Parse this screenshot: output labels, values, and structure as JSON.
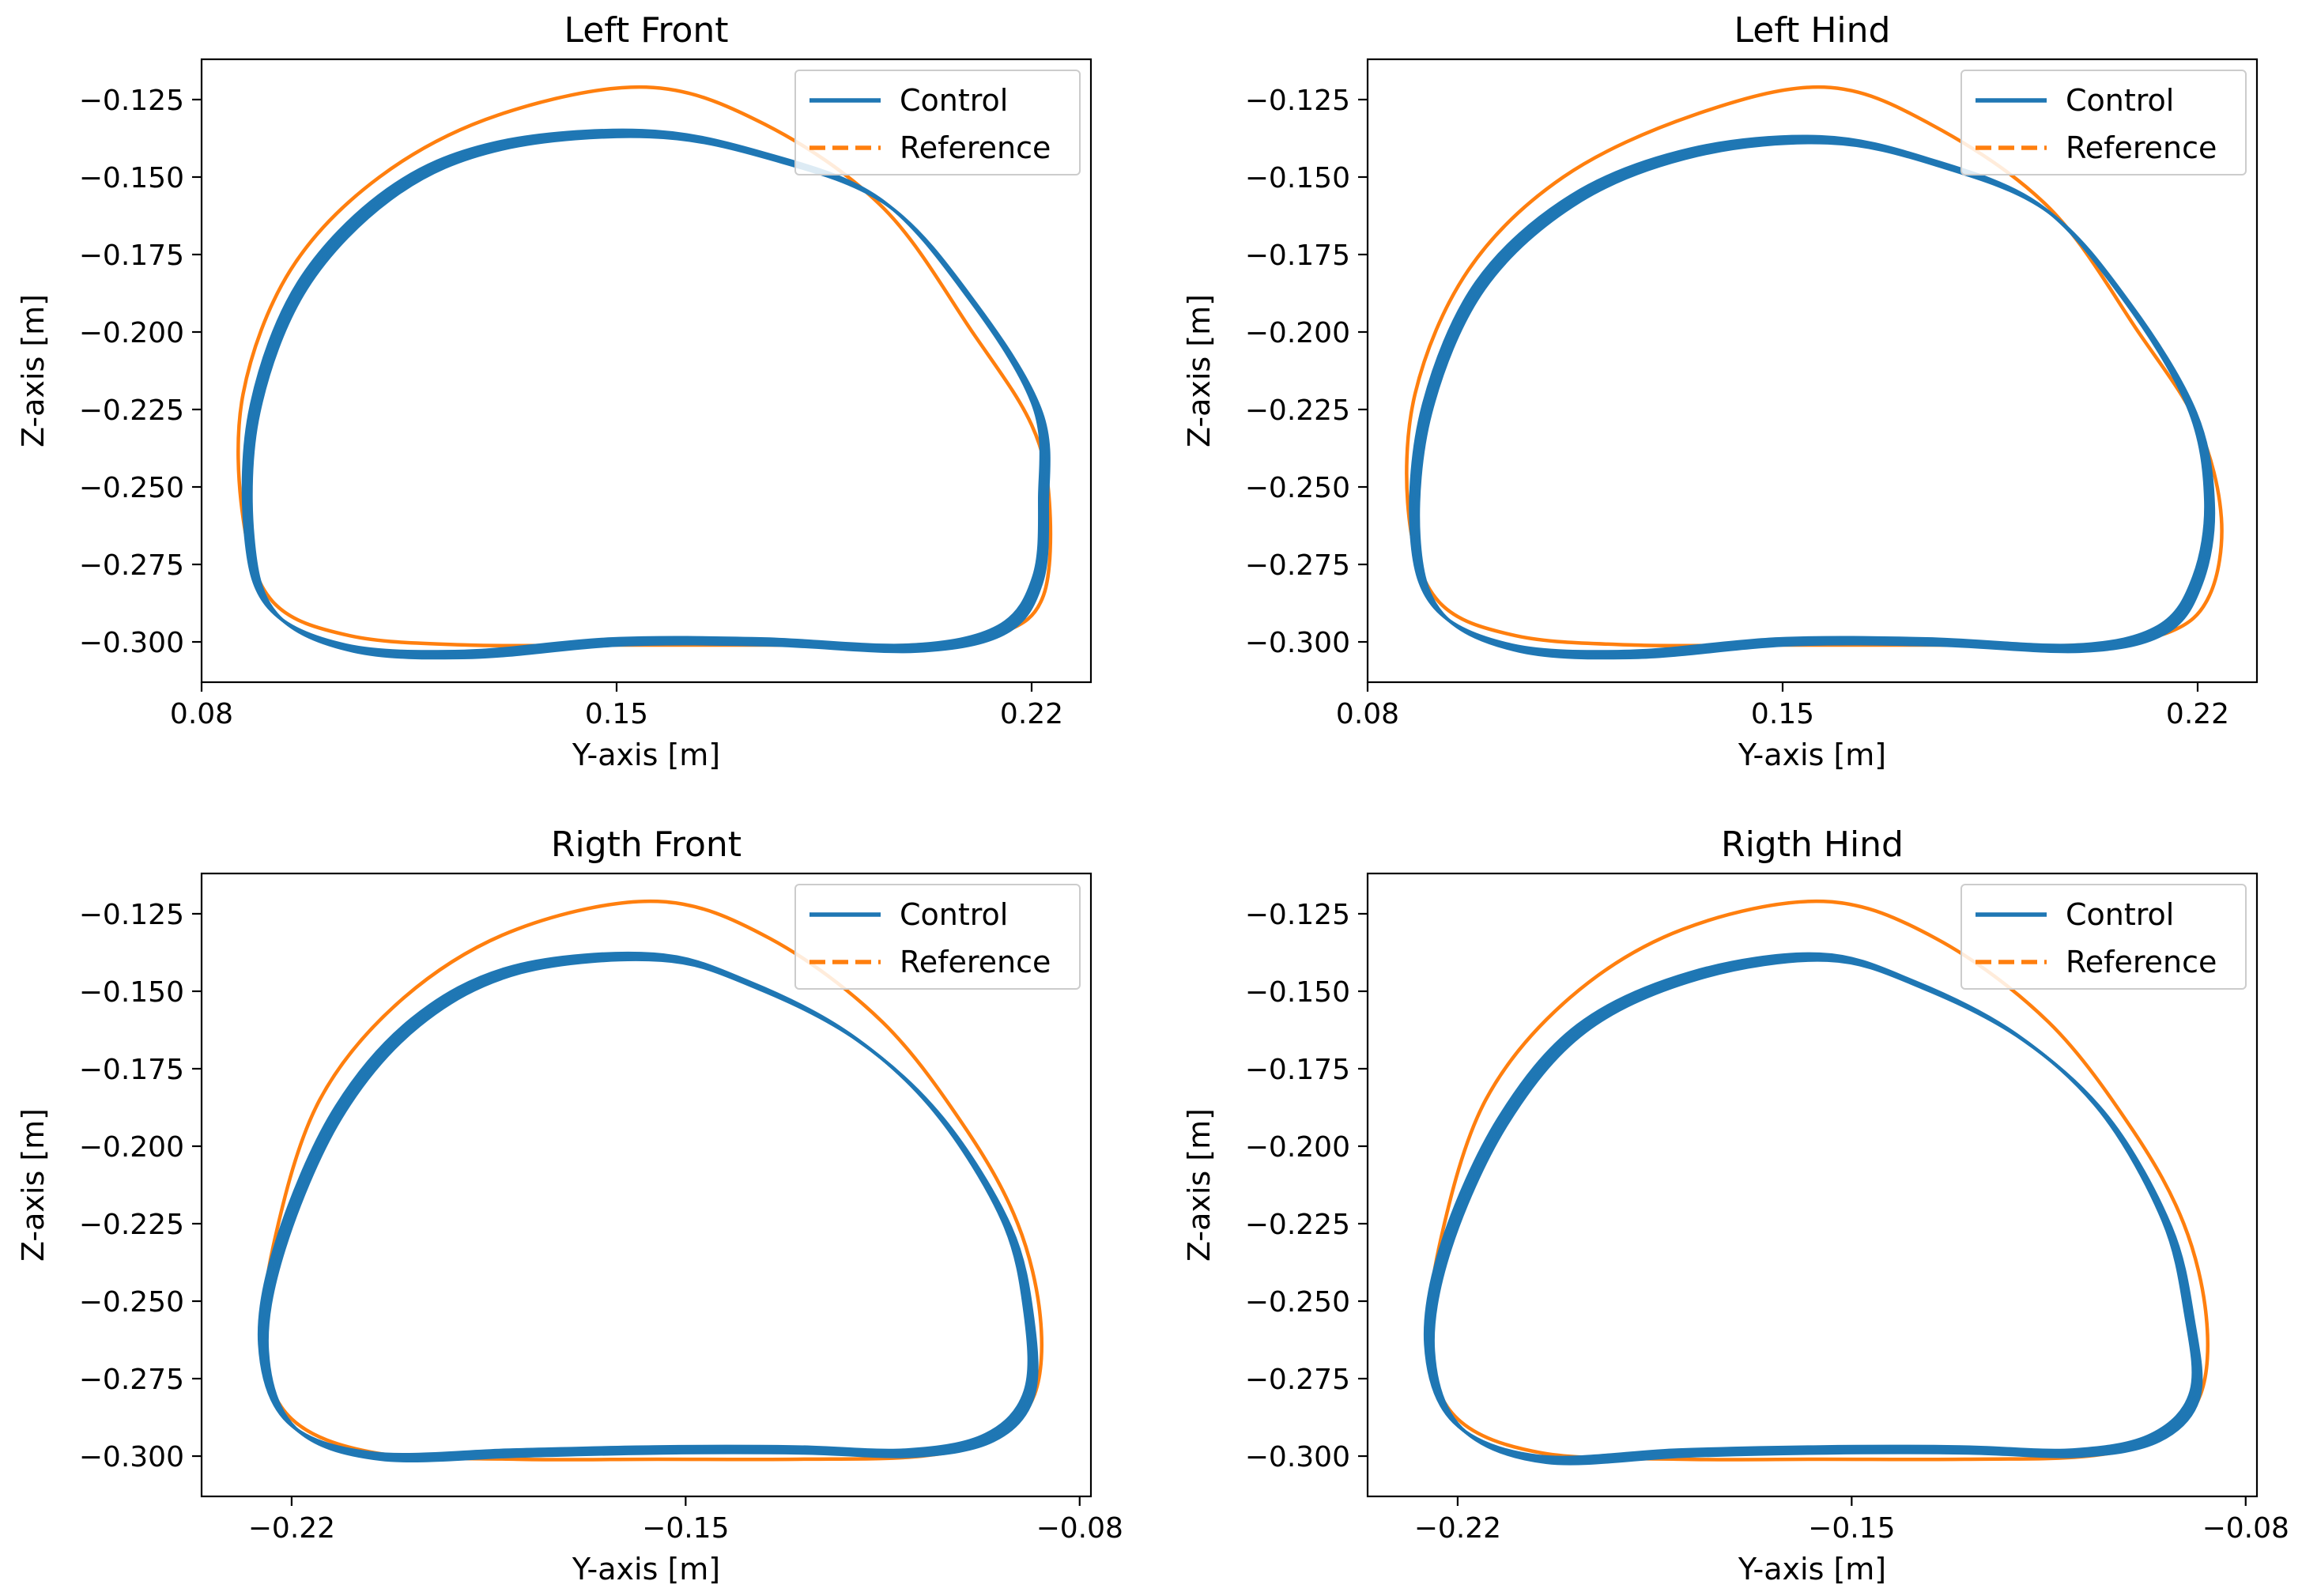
{
  "figure": {
    "series_names": [
      "Control",
      "Reference"
    ],
    "colors": {
      "control": "#1f77b4",
      "reference": "#ff7f0e"
    }
  },
  "chart_data": [
    {
      "type": "line",
      "title": "Left Front",
      "xlabel": "Y-axis [m]",
      "ylabel": "Z-axis [m]",
      "xlim": [
        0.08,
        0.23
      ],
      "ylim": [
        -0.313,
        -0.112
      ],
      "xticks": [
        0.08,
        0.15,
        0.22
      ],
      "xtick_labels": [
        "0.08",
        "0.15",
        "0.22"
      ],
      "yticks": [
        -0.125,
        -0.15,
        -0.175,
        -0.2,
        -0.225,
        -0.25,
        -0.275,
        -0.3
      ],
      "ytick_labels": [
        "−0.125",
        "−0.150",
        "−0.175",
        "−0.200",
        "−0.225",
        "−0.250",
        "−0.275",
        "−0.300"
      ],
      "legend": {
        "placement": "top-right",
        "entries": [
          "Control",
          "Reference"
        ]
      },
      "series": [
        {
          "name": "Reference",
          "x": [
            0.155,
            0.13,
            0.11,
            0.095,
            0.087,
            0.087,
            0.092,
            0.105,
            0.125,
            0.15,
            0.175,
            0.2,
            0.215,
            0.222,
            0.223,
            0.22,
            0.21,
            0.195,
            0.175,
            0.155
          ],
          "y": [
            -0.121,
            -0.13,
            -0.15,
            -0.18,
            -0.22,
            -0.26,
            -0.287,
            -0.298,
            -0.301,
            -0.301,
            -0.301,
            -0.301,
            -0.297,
            -0.285,
            -0.255,
            -0.23,
            -0.2,
            -0.16,
            -0.133,
            -0.121
          ]
        },
        {
          "name": "Control",
          "x": [
            0.155,
            0.13,
            0.112,
            0.097,
            0.089,
            0.088,
            0.092,
            0.105,
            0.125,
            0.15,
            0.175,
            0.2,
            0.215,
            0.221,
            0.222,
            0.221,
            0.21,
            0.195,
            0.175,
            0.155
          ],
          "y": [
            -0.136,
            -0.14,
            -0.155,
            -0.185,
            -0.225,
            -0.265,
            -0.29,
            -0.302,
            -0.304,
            -0.3,
            -0.3,
            -0.302,
            -0.296,
            -0.28,
            -0.255,
            -0.225,
            -0.19,
            -0.158,
            -0.143,
            -0.136
          ]
        }
      ]
    },
    {
      "type": "line",
      "title": "Left Hind",
      "xlabel": "Y-axis [m]",
      "ylabel": "Z-axis [m]",
      "xlim": [
        0.08,
        0.23
      ],
      "ylim": [
        -0.313,
        -0.112
      ],
      "xticks": [
        0.08,
        0.15,
        0.22
      ],
      "xtick_labels": [
        "0.08",
        "0.15",
        "0.22"
      ],
      "yticks": [
        -0.125,
        -0.15,
        -0.175,
        -0.2,
        -0.225,
        -0.25,
        -0.275,
        -0.3
      ],
      "ytick_labels": [
        "−0.125",
        "−0.150",
        "−0.175",
        "−0.200",
        "−0.225",
        "−0.250",
        "−0.275",
        "−0.300"
      ],
      "legend": {
        "placement": "top-right",
        "entries": [
          "Control",
          "Reference"
        ]
      },
      "series": [
        {
          "name": "Reference",
          "x": [
            0.157,
            0.135,
            0.113,
            0.097,
            0.088,
            0.087,
            0.092,
            0.105,
            0.125,
            0.15,
            0.175,
            0.2,
            0.215,
            0.222,
            0.224,
            0.22,
            0.21,
            0.195,
            0.175,
            0.157
          ],
          "y": [
            -0.121,
            -0.13,
            -0.15,
            -0.18,
            -0.22,
            -0.26,
            -0.287,
            -0.298,
            -0.301,
            -0.301,
            -0.301,
            -0.301,
            -0.297,
            -0.285,
            -0.26,
            -0.23,
            -0.2,
            -0.16,
            -0.133,
            -0.121
          ]
        },
        {
          "name": "Control",
          "x": [
            0.157,
            0.135,
            0.115,
            0.099,
            0.09,
            0.088,
            0.092,
            0.105,
            0.125,
            0.15,
            0.175,
            0.2,
            0.214,
            0.22,
            0.222,
            0.219,
            0.208,
            0.194,
            0.175,
            0.157
          ],
          "y": [
            -0.138,
            -0.142,
            -0.157,
            -0.185,
            -0.225,
            -0.265,
            -0.29,
            -0.302,
            -0.304,
            -0.3,
            -0.3,
            -0.302,
            -0.296,
            -0.28,
            -0.255,
            -0.225,
            -0.19,
            -0.16,
            -0.145,
            -0.138
          ]
        }
      ]
    },
    {
      "type": "line",
      "title": "Rigth Front",
      "xlabel": "Y-axis [m]",
      "ylabel": "Z-axis [m]",
      "xlim": [
        -0.236,
        -0.078
      ],
      "ylim": [
        -0.313,
        -0.112
      ],
      "xticks": [
        -0.22,
        -0.15,
        -0.08
      ],
      "xtick_labels": [
        "−0.22",
        "−0.15",
        "−0.08"
      ],
      "yticks": [
        -0.125,
        -0.15,
        -0.175,
        -0.2,
        -0.225,
        -0.25,
        -0.275,
        -0.3
      ],
      "ytick_labels": [
        "−0.125",
        "−0.150",
        "−0.175",
        "−0.200",
        "−0.225",
        "−0.250",
        "−0.275",
        "−0.300"
      ],
      "legend": {
        "placement": "top-right",
        "entries": [
          "Control",
          "Reference"
        ]
      },
      "series": [
        {
          "name": "Reference",
          "x": [
            -0.155,
            -0.18,
            -0.2,
            -0.215,
            -0.223,
            -0.225,
            -0.22,
            -0.205,
            -0.18,
            -0.155,
            -0.13,
            -0.108,
            -0.095,
            -0.088,
            -0.087,
            -0.091,
            -0.1,
            -0.115,
            -0.135,
            -0.155
          ],
          "y": [
            -0.121,
            -0.13,
            -0.152,
            -0.185,
            -0.23,
            -0.265,
            -0.288,
            -0.299,
            -0.301,
            -0.301,
            -0.301,
            -0.3,
            -0.294,
            -0.28,
            -0.255,
            -0.225,
            -0.195,
            -0.16,
            -0.133,
            -0.121
          ]
        },
        {
          "name": "Control",
          "x": [
            -0.155,
            -0.18,
            -0.198,
            -0.212,
            -0.222,
            -0.225,
            -0.22,
            -0.205,
            -0.18,
            -0.155,
            -0.13,
            -0.11,
            -0.096,
            -0.089,
            -0.089,
            -0.093,
            -0.105,
            -0.12,
            -0.138,
            -0.155
          ],
          "y": [
            -0.139,
            -0.143,
            -0.16,
            -0.19,
            -0.232,
            -0.265,
            -0.29,
            -0.3,
            -0.299,
            -0.298,
            -0.298,
            -0.299,
            -0.294,
            -0.28,
            -0.255,
            -0.225,
            -0.19,
            -0.165,
            -0.148,
            -0.139
          ]
        }
      ]
    },
    {
      "type": "line",
      "title": "Rigth Hind",
      "xlabel": "Y-axis [m]",
      "ylabel": "Z-axis [m]",
      "xlim": [
        -0.236,
        -0.078
      ],
      "ylim": [
        -0.313,
        -0.112
      ],
      "xticks": [
        -0.22,
        -0.15,
        -0.08
      ],
      "xtick_labels": [
        "−0.22",
        "−0.15",
        "−0.08"
      ],
      "yticks": [
        -0.125,
        -0.15,
        -0.175,
        -0.2,
        -0.225,
        -0.25,
        -0.275,
        -0.3
      ],
      "ytick_labels": [
        "−0.125",
        "−0.150",
        "−0.175",
        "−0.200",
        "−0.225",
        "−0.250",
        "−0.275",
        "−0.300"
      ],
      "legend": {
        "placement": "top-right",
        "entries": [
          "Control",
          "Reference"
        ]
      },
      "series": [
        {
          "name": "Reference",
          "x": [
            -0.155,
            -0.18,
            -0.2,
            -0.215,
            -0.223,
            -0.225,
            -0.22,
            -0.205,
            -0.18,
            -0.155,
            -0.13,
            -0.108,
            -0.095,
            -0.088,
            -0.087,
            -0.091,
            -0.1,
            -0.115,
            -0.135,
            -0.155
          ],
          "y": [
            -0.121,
            -0.13,
            -0.152,
            -0.185,
            -0.23,
            -0.265,
            -0.288,
            -0.299,
            -0.301,
            -0.301,
            -0.301,
            -0.3,
            -0.294,
            -0.28,
            -0.255,
            -0.225,
            -0.195,
            -0.16,
            -0.133,
            -0.121
          ]
        },
        {
          "name": "Control",
          "x": [
            -0.155,
            -0.178,
            -0.198,
            -0.212,
            -0.222,
            -0.225,
            -0.22,
            -0.205,
            -0.18,
            -0.155,
            -0.13,
            -0.11,
            -0.096,
            -0.089,
            -0.09,
            -0.094,
            -0.105,
            -0.12,
            -0.138,
            -0.155
          ],
          "y": [
            -0.139,
            -0.145,
            -0.162,
            -0.192,
            -0.232,
            -0.265,
            -0.29,
            -0.301,
            -0.299,
            -0.298,
            -0.298,
            -0.299,
            -0.294,
            -0.28,
            -0.255,
            -0.225,
            -0.19,
            -0.165,
            -0.148,
            -0.139
          ]
        }
      ]
    }
  ]
}
